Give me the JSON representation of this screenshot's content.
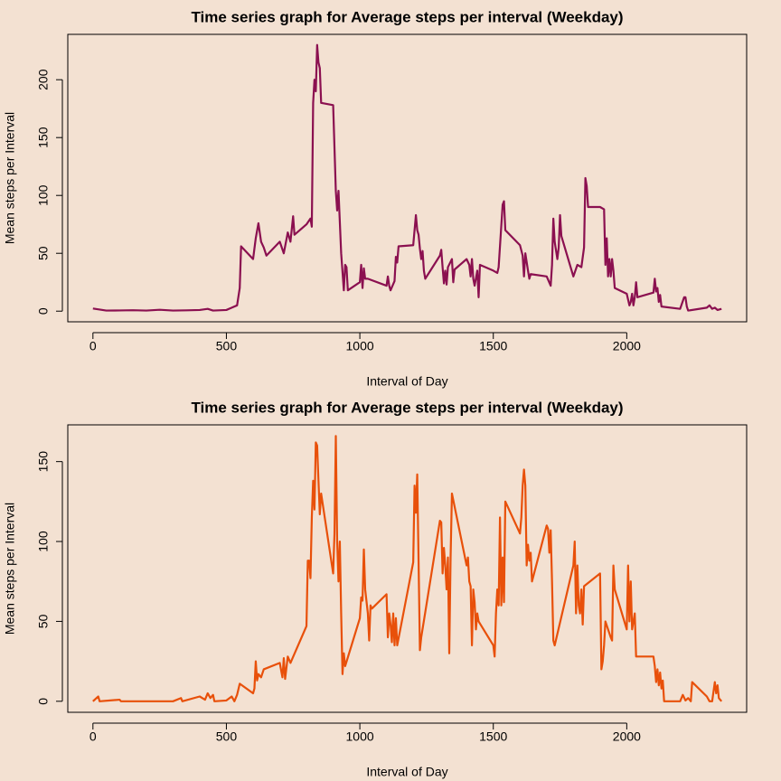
{
  "chart_data": [
    {
      "type": "line",
      "title": "Time series graph for Average steps per interval (Weekday)",
      "xlabel": "Interval of Day",
      "ylabel": "Mean steps per Interval",
      "color": "#8b1050",
      "xlim": [
        -94.2,
        2449.2
      ],
      "ylim": [
        -9.2,
        239.2
      ],
      "xticks": [
        0,
        500,
        1000,
        1500,
        2000
      ],
      "yticks": [
        0,
        50,
        100,
        150,
        200
      ],
      "x": [
        0,
        50,
        100,
        150,
        200,
        250,
        300,
        350,
        400,
        430,
        450,
        500,
        520,
        540,
        550,
        555,
        600,
        610,
        620,
        630,
        640,
        650,
        700,
        715,
        730,
        740,
        750,
        755,
        800,
        815,
        820,
        825,
        830,
        835,
        840,
        845,
        850,
        855,
        900,
        910,
        915,
        920,
        930,
        940,
        945,
        950,
        955,
        1000,
        1005,
        1010,
        1015,
        1020,
        1030,
        1100,
        1105,
        1110,
        1115,
        1130,
        1135,
        1140,
        1145,
        1200,
        1210,
        1215,
        1220,
        1225,
        1230,
        1235,
        1240,
        1245,
        1300,
        1305,
        1310,
        1315,
        1320,
        1325,
        1330,
        1345,
        1350,
        1355,
        1400,
        1410,
        1415,
        1420,
        1425,
        1430,
        1440,
        1445,
        1450,
        1500,
        1515,
        1520,
        1535,
        1540,
        1545,
        1600,
        1610,
        1615,
        1620,
        1630,
        1635,
        1640,
        1700,
        1715,
        1720,
        1725,
        1730,
        1740,
        1745,
        1750,
        1755,
        1800,
        1815,
        1830,
        1840,
        1845,
        1850,
        1855,
        1900,
        1915,
        1920,
        1925,
        1930,
        1935,
        1940,
        1945,
        1950,
        1955,
        2000,
        2010,
        2015,
        2020,
        2025,
        2030,
        2035,
        2040,
        2100,
        2105,
        2110,
        2115,
        2120,
        2125,
        2130,
        2200,
        2215,
        2220,
        2225,
        2230,
        2300,
        2310,
        2320,
        2330,
        2340,
        2355
      ],
      "values": [
        2.3,
        0.5,
        0.6,
        0.8,
        0.5,
        1.2,
        0.5,
        0.7,
        1,
        2,
        0.5,
        1,
        3,
        5,
        20,
        56,
        45,
        63,
        76,
        60,
        55,
        48,
        60,
        50,
        68,
        60,
        82,
        66,
        75,
        80,
        73,
        180,
        200,
        190,
        230,
        215,
        210,
        180,
        178,
        104,
        87,
        104,
        50,
        18,
        40,
        38,
        18,
        25,
        40,
        20,
        37,
        28,
        28,
        22,
        30,
        22,
        18,
        26,
        47,
        42,
        56,
        57,
        83,
        70,
        66,
        54,
        45,
        52,
        35,
        28,
        48,
        53,
        38,
        24,
        35,
        23,
        38,
        45,
        25,
        36,
        45,
        40,
        30,
        45,
        28,
        22,
        35,
        12,
        40,
        35,
        33,
        38,
        92,
        95,
        70,
        57,
        48,
        30,
        50,
        35,
        28,
        32,
        30,
        22,
        40,
        80,
        60,
        45,
        55,
        83,
        65,
        30,
        40,
        38,
        55,
        115,
        108,
        90,
        90,
        88,
        40,
        63,
        30,
        45,
        30,
        45,
        35,
        20,
        15,
        5,
        8,
        15,
        5,
        12,
        25,
        12,
        16,
        28,
        17,
        20,
        8,
        14,
        4,
        2,
        12,
        12,
        4,
        0.5,
        3,
        5,
        2,
        3,
        1,
        2
      ]
    },
    {
      "type": "line",
      "title": "Time series graph for Average steps per interval (Weekday)",
      "xlabel": "Interval of Day",
      "ylabel": "Mean steps per Interval",
      "color": "#e8500a",
      "xlim": [
        -94.2,
        2449.2
      ],
      "ylim": [
        -6.9,
        173
      ],
      "xticks": [
        0,
        500,
        1000,
        1500,
        2000
      ],
      "yticks": [
        0,
        50,
        100,
        150
      ],
      "x": [
        0,
        20,
        25,
        100,
        105,
        300,
        330,
        335,
        400,
        420,
        430,
        440,
        450,
        455,
        500,
        520,
        530,
        540,
        550,
        600,
        605,
        610,
        615,
        620,
        630,
        640,
        700,
        710,
        715,
        720,
        730,
        740,
        800,
        805,
        810,
        815,
        820,
        825,
        830,
        835,
        840,
        845,
        850,
        855,
        900,
        905,
        910,
        915,
        920,
        925,
        930,
        935,
        940,
        945,
        1000,
        1005,
        1010,
        1015,
        1020,
        1030,
        1035,
        1040,
        1045,
        1100,
        1105,
        1110,
        1115,
        1120,
        1125,
        1130,
        1135,
        1140,
        1200,
        1205,
        1210,
        1215,
        1220,
        1225,
        1230,
        1300,
        1305,
        1310,
        1315,
        1320,
        1325,
        1330,
        1335,
        1340,
        1345,
        1400,
        1405,
        1410,
        1415,
        1420,
        1425,
        1430,
        1435,
        1440,
        1445,
        1500,
        1505,
        1510,
        1515,
        1520,
        1525,
        1530,
        1535,
        1540,
        1545,
        1600,
        1605,
        1610,
        1615,
        1620,
        1625,
        1630,
        1635,
        1640,
        1645,
        1700,
        1705,
        1710,
        1715,
        1720,
        1725,
        1730,
        1800,
        1805,
        1810,
        1815,
        1820,
        1825,
        1830,
        1835,
        1840,
        1900,
        1905,
        1910,
        1915,
        1920,
        1940,
        1945,
        1950,
        1955,
        2000,
        2005,
        2010,
        2015,
        2020,
        2030,
        2035,
        2100,
        2105,
        2110,
        2115,
        2120,
        2125,
        2130,
        2135,
        2140,
        2200,
        2210,
        2220,
        2230,
        2240,
        2245,
        2300,
        2310,
        2320,
        2330,
        2335,
        2340,
        2345,
        2355
      ],
      "values": [
        0,
        3,
        0,
        1,
        0,
        0,
        2,
        0,
        3,
        1,
        5,
        2,
        4,
        0,
        0.5,
        3,
        0,
        4,
        11,
        5,
        8,
        25,
        13,
        17,
        15,
        20,
        24,
        15,
        27,
        14,
        28,
        24,
        47,
        88,
        88,
        77,
        115,
        138,
        120,
        162,
        160,
        138,
        117,
        130,
        80,
        105,
        166,
        100,
        75,
        100,
        55,
        17,
        30,
        22,
        52,
        65,
        63,
        95,
        70,
        55,
        38,
        60,
        58,
        67,
        40,
        55,
        48,
        37,
        55,
        35,
        52,
        35,
        87,
        135,
        118,
        142,
        88,
        32,
        40,
        113,
        112,
        80,
        96,
        85,
        70,
        90,
        30,
        90,
        130,
        85,
        90,
        75,
        72,
        35,
        70,
        62,
        45,
        55,
        50,
        35,
        28,
        55,
        70,
        60,
        115,
        60,
        90,
        62,
        125,
        105,
        115,
        135,
        145,
        135,
        85,
        98,
        88,
        93,
        75,
        110,
        108,
        93,
        107,
        75,
        38,
        35,
        85,
        100,
        55,
        85,
        60,
        55,
        70,
        48,
        72,
        80,
        20,
        25,
        35,
        50,
        40,
        38,
        85,
        70,
        45,
        85,
        50,
        75,
        45,
        55,
        28,
        28,
        22,
        12,
        20,
        10,
        18,
        8,
        13,
        0,
        0,
        4,
        0.5,
        2,
        0,
        12,
        3,
        0,
        0,
        12,
        5,
        10,
        2,
        0
      ]
    }
  ]
}
